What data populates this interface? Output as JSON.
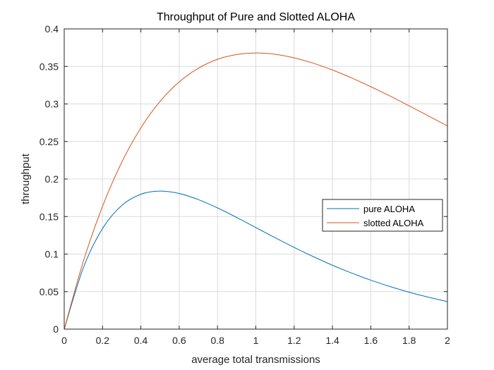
{
  "chart_data": {
    "type": "line",
    "title": "Throughput of Pure and Slotted ALOHA",
    "xlabel": "average total transmissions",
    "ylabel": "throughput",
    "xlim": [
      0,
      2
    ],
    "ylim": [
      0,
      0.4
    ],
    "xticks": [
      0,
      0.2,
      0.4,
      0.6,
      0.8,
      1,
      1.2,
      1.4,
      1.6,
      1.8,
      2
    ],
    "xtick_labels": [
      "0",
      "0.2",
      "0.4",
      "0.6",
      "0.8",
      "1",
      "1.2",
      "1.4",
      "1.6",
      "1.8",
      "2"
    ],
    "yticks": [
      0,
      0.05,
      0.1,
      0.15,
      0.2,
      0.25,
      0.3,
      0.35,
      0.4
    ],
    "ytick_labels": [
      "0",
      "0.05",
      "0.1",
      "0.15",
      "0.2",
      "0.25",
      "0.3",
      "0.35",
      "0.4"
    ],
    "grid": true,
    "legend_position": "right-middle",
    "x": [
      0,
      0.1,
      0.2,
      0.3,
      0.4,
      0.5,
      0.6,
      0.7,
      0.8,
      0.9,
      1.0,
      1.1,
      1.2,
      1.3,
      1.4,
      1.5,
      1.6,
      1.7,
      1.8,
      1.9,
      2.0
    ],
    "series": [
      {
        "name": "pure ALOHA",
        "color": "#0072BD",
        "values": [
          0,
          0.0819,
          0.1341,
          0.1647,
          0.1797,
          0.1839,
          0.1807,
          0.1726,
          0.1615,
          0.1488,
          0.1353,
          0.1219,
          0.1089,
          0.0966,
          0.0851,
          0.0747,
          0.0652,
          0.0568,
          0.0492,
          0.0426,
          0.0366
        ]
      },
      {
        "name": "slotted ALOHA",
        "color": "#D95319",
        "values": [
          0,
          0.0905,
          0.1637,
          0.2222,
          0.2681,
          0.3033,
          0.3293,
          0.3476,
          0.3595,
          0.3659,
          0.3679,
          0.3662,
          0.3614,
          0.3543,
          0.3452,
          0.3347,
          0.323,
          0.3106,
          0.2975,
          0.2842,
          0.2707
        ]
      }
    ]
  }
}
